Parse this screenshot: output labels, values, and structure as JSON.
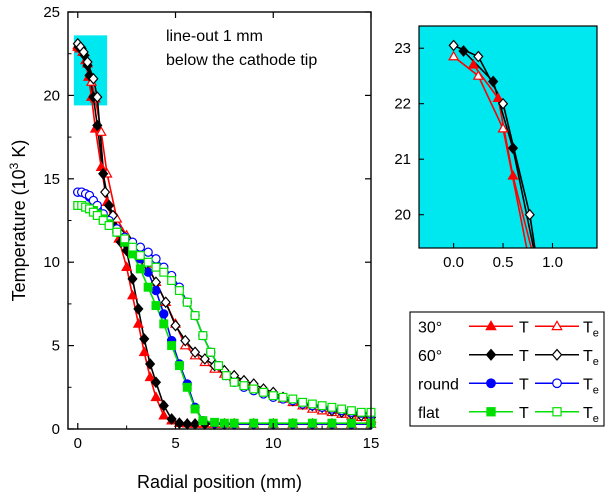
{
  "chart_data": [
    {
      "type": "line",
      "name": "main-plot",
      "xlabel": "Radial position (mm)",
      "ylabel_main": "Temperature (10",
      "ylabel_sup": "3",
      "ylabel_tail": " K)",
      "xlim": [
        -0.5,
        15
      ],
      "ylim": [
        0,
        25
      ],
      "xticks": [
        0,
        5,
        10,
        15
      ],
      "yticks": [
        0,
        5,
        10,
        15,
        20,
        25
      ],
      "annotation": [
        "line-out 1 mm",
        "below the cathode tip"
      ],
      "highlight": {
        "x": [
          -0.2,
          1.5
        ],
        "y": [
          19.4,
          23.6
        ],
        "color": "#00e8ef"
      },
      "series": [
        {
          "group": "30°",
          "var": "T",
          "color": "#ff0000",
          "marker": "triangle",
          "filled": true,
          "x": [
            0.0,
            0.1,
            0.25,
            0.4,
            0.55,
            0.7,
            0.9,
            1.2,
            1.5,
            1.8,
            2.1,
            2.5,
            2.8,
            3.1,
            3.4,
            3.7,
            4.0,
            4.4,
            4.8,
            5.2,
            5.6,
            6.0,
            6.5,
            7.0,
            7.5,
            8.0,
            9.0,
            10.0,
            11.0,
            12.0,
            13.0,
            14.0,
            15.0
          ],
          "y": [
            22.9,
            22.8,
            22.6,
            22.1,
            21.1,
            19.9,
            18.0,
            15.7,
            13.6,
            12.3,
            11.4,
            9.7,
            8.0,
            6.3,
            4.6,
            3.1,
            1.9,
            0.8,
            0.5,
            0.35,
            0.32,
            0.3,
            0.3,
            0.3,
            0.3,
            0.3,
            0.3,
            0.3,
            0.3,
            0.3,
            0.3,
            0.3,
            0.3
          ]
        },
        {
          "group": "30°",
          "var": "Te",
          "color": "#ff0000",
          "marker": "triangle",
          "filled": false,
          "x": [
            0.0,
            0.1,
            0.3,
            0.5,
            0.7,
            0.9,
            1.2,
            1.5,
            2.0,
            2.5,
            3.0,
            3.5,
            4.0,
            4.5,
            5.0,
            5.5,
            6.0,
            6.5,
            7.0,
            7.5,
            8.0,
            8.5,
            9.0,
            9.5,
            10.0,
            10.5,
            11.0,
            11.5,
            12.0,
            12.5,
            13.0,
            13.5,
            14.0,
            14.5,
            15.0
          ],
          "y": [
            23.0,
            22.9,
            22.6,
            21.9,
            20.8,
            19.8,
            17.8,
            15.3,
            12.6,
            11.6,
            10.8,
            9.9,
            8.8,
            7.6,
            6.3,
            5.0,
            4.4,
            4.0,
            3.6,
            3.3,
            3.1,
            2.8,
            2.5,
            2.3,
            2.1,
            1.8,
            1.6,
            1.4,
            1.2,
            1.1,
            1.0,
            0.9,
            0.8,
            0.7,
            0.6
          ]
        },
        {
          "group": "60°",
          "var": "T",
          "color": "#000000",
          "marker": "diamond",
          "filled": true,
          "x": [
            0.05,
            0.2,
            0.35,
            0.5,
            0.6,
            0.8,
            1.0,
            1.3,
            1.6,
            1.9,
            2.2,
            2.5,
            2.8,
            3.1,
            3.4,
            3.7,
            4.0,
            4.4,
            4.8,
            5.2,
            5.6,
            6.0,
            6.5,
            7.0,
            7.5,
            8.0,
            9.0,
            10.0,
            11.0,
            12.0,
            13.0,
            14.0,
            15.0
          ],
          "y": [
            22.9,
            22.8,
            22.4,
            21.8,
            21.2,
            19.9,
            18.2,
            15.3,
            13.4,
            12.1,
            11.2,
            10.7,
            9.0,
            7.2,
            5.4,
            3.9,
            2.8,
            1.4,
            0.6,
            0.35,
            0.3,
            0.3,
            0.3,
            0.3,
            0.3,
            0.3,
            0.3,
            0.3,
            0.3,
            0.3,
            0.3,
            0.3,
            0.3
          ]
        },
        {
          "group": "60°",
          "var": "Te",
          "color": "#000000",
          "marker": "diamond",
          "filled": false,
          "x": [
            0.0,
            0.15,
            0.3,
            0.5,
            0.8,
            1.0,
            1.4,
            1.8,
            2.2,
            2.6,
            3.0,
            3.5,
            4.0,
            4.5,
            5.0,
            5.5,
            6.0,
            6.5,
            7.0,
            7.5,
            8.0,
            8.5,
            9.0,
            9.5,
            10.0,
            10.5,
            11.0,
            11.5,
            12.0,
            12.5,
            13.0,
            13.5,
            14.0,
            14.5,
            15.0
          ],
          "y": [
            23.1,
            22.9,
            22.6,
            22.0,
            21.0,
            19.9,
            14.2,
            12.8,
            11.7,
            11.3,
            10.7,
            9.9,
            8.8,
            7.6,
            6.2,
            5.3,
            4.6,
            4.2,
            3.8,
            3.5,
            3.2,
            2.9,
            2.7,
            2.4,
            2.2,
            1.9,
            1.7,
            1.5,
            1.4,
            1.3,
            1.1,
            1.0,
            0.9,
            0.8,
            0.7
          ]
        },
        {
          "group": "round",
          "var": "T",
          "color": "#0000ff",
          "marker": "circle",
          "filled": true,
          "x": [
            0.0,
            0.2,
            0.4,
            0.6,
            0.8,
            1.0,
            1.3,
            1.6,
            2.0,
            2.4,
            2.8,
            3.2,
            3.6,
            4.0,
            4.4,
            4.8,
            5.2,
            5.6,
            6.0,
            6.4,
            7.0,
            7.5,
            8.0,
            9.0,
            10.0,
            11.0,
            12.0,
            13.0,
            14.0,
            15.0
          ],
          "y": [
            14.2,
            14.2,
            14.1,
            13.9,
            13.6,
            13.2,
            12.7,
            12.3,
            11.8,
            11.4,
            10.9,
            10.2,
            9.4,
            8.3,
            6.9,
            5.3,
            3.9,
            2.7,
            1.3,
            0.5,
            0.35,
            0.3,
            0.3,
            0.3,
            0.3,
            0.3,
            0.3,
            0.3,
            0.3,
            0.3
          ]
        },
        {
          "group": "round",
          "var": "Te",
          "color": "#0000ff",
          "marker": "circle",
          "filled": false,
          "x": [
            0.0,
            0.2,
            0.4,
            0.6,
            0.8,
            1.0,
            1.3,
            1.6,
            2.0,
            2.4,
            2.8,
            3.2,
            3.6,
            4.0,
            4.4,
            4.8,
            5.2,
            5.6,
            6.0,
            6.4,
            6.8,
            7.2,
            7.6,
            8.0,
            8.5,
            9.0,
            9.5,
            10.0,
            10.5,
            11.0,
            11.5,
            12.0,
            12.5,
            13.0,
            13.5,
            14.0,
            14.5,
            15.0
          ],
          "y": [
            14.2,
            14.2,
            14.1,
            14.0,
            13.7,
            13.4,
            12.9,
            12.5,
            12.0,
            11.5,
            11.2,
            10.9,
            10.6,
            10.2,
            9.7,
            9.2,
            8.5,
            7.6,
            6.8,
            5.6,
            4.6,
            3.8,
            3.2,
            2.8,
            2.5,
            2.3,
            2.1,
            1.9,
            1.8,
            1.7,
            1.5,
            1.4,
            1.3,
            1.2,
            1.1,
            1.0,
            0.95,
            0.9
          ]
        },
        {
          "group": "flat",
          "var": "T",
          "color": "#00e000",
          "marker": "square",
          "filled": true,
          "x": [
            0.0,
            0.2,
            0.4,
            0.6,
            0.8,
            1.0,
            1.3,
            1.6,
            2.0,
            2.4,
            2.8,
            3.2,
            3.6,
            4.0,
            4.4,
            4.8,
            5.2,
            5.6,
            6.0,
            6.4,
            7.0,
            7.5,
            8.0,
            9.0,
            10.0,
            11.0,
            12.0,
            13.0,
            14.0,
            15.0
          ],
          "y": [
            13.4,
            13.4,
            13.3,
            13.2,
            13.1,
            12.9,
            12.6,
            12.3,
            11.8,
            11.2,
            10.5,
            9.6,
            8.5,
            7.4,
            6.3,
            5.0,
            3.8,
            2.5,
            1.2,
            0.5,
            0.4,
            0.35,
            0.35,
            0.35,
            0.35,
            0.35,
            0.35,
            0.35,
            0.35,
            0.35
          ]
        },
        {
          "group": "flat",
          "var": "Te",
          "color": "#00e000",
          "marker": "square",
          "filled": false,
          "x": [
            0.0,
            0.2,
            0.4,
            0.6,
            0.8,
            1.0,
            1.3,
            1.6,
            2.0,
            2.4,
            2.8,
            3.2,
            3.6,
            4.0,
            4.4,
            4.8,
            5.2,
            5.6,
            6.0,
            6.4,
            6.8,
            7.2,
            7.6,
            8.0,
            8.5,
            9.0,
            9.5,
            10.0,
            10.5,
            11.0,
            11.5,
            12.0,
            12.5,
            13.0,
            13.5,
            14.0,
            14.5,
            15.0
          ],
          "y": [
            13.4,
            13.4,
            13.3,
            13.2,
            13.0,
            12.8,
            12.5,
            12.2,
            11.8,
            11.4,
            10.9,
            10.4,
            10.0,
            9.7,
            9.4,
            8.9,
            8.3,
            7.6,
            6.8,
            5.6,
            4.6,
            3.8,
            3.2,
            2.8,
            2.6,
            2.4,
            2.2,
            2.0,
            1.9,
            1.8,
            1.6,
            1.5,
            1.4,
            1.3,
            1.2,
            1.1,
            1.0,
            1.0
          ]
        }
      ]
    },
    {
      "type": "line",
      "name": "inset-plot",
      "background": "#00e8ef",
      "xlim": [
        -0.35,
        1.45
      ],
      "ylim": [
        19.4,
        23.4
      ],
      "xticks": [
        0.0,
        0.5,
        1.0
      ],
      "xtick_labels": [
        "0.0",
        "0.5",
        "1.0"
      ],
      "yticks": [
        20,
        21,
        22,
        23
      ],
      "series": [
        {
          "group": "30°",
          "var": "T",
          "color": "#ff0000",
          "marker": "triangle",
          "filled": true,
          "x": [
            0.2,
            0.45,
            0.6,
            0.8
          ],
          "y": [
            22.7,
            22.1,
            20.7,
            19.3
          ]
        },
        {
          "group": "30°",
          "var": "Te",
          "color": "#ff0000",
          "marker": "triangle",
          "filled": false,
          "x": [
            0.0,
            0.25,
            0.5,
            0.75
          ],
          "y": [
            22.85,
            22.5,
            21.55,
            19.3
          ]
        },
        {
          "group": "60°",
          "var": "T",
          "color": "#000000",
          "marker": "diamond",
          "filled": true,
          "x": [
            0.1,
            0.4,
            0.6,
            0.82
          ],
          "y": [
            22.95,
            22.4,
            21.2,
            19.3
          ]
        },
        {
          "group": "60°",
          "var": "Te",
          "color": "#000000",
          "marker": "diamond",
          "filled": false,
          "x": [
            0.0,
            0.25,
            0.5,
            0.77,
            0.83
          ],
          "y": [
            23.05,
            22.85,
            22.0,
            20.0,
            19.3
          ]
        }
      ]
    }
  ],
  "legend": [
    {
      "group": "30°",
      "label_T": "T",
      "label_Te_main": "T",
      "label_Te_sub": "e",
      "color": "#ff0000",
      "marker": "triangle"
    },
    {
      "group": "60°",
      "label_T": "T",
      "label_Te_main": "T",
      "label_Te_sub": "e",
      "color": "#000000",
      "marker": "diamond"
    },
    {
      "group": "round",
      "label_T": "T",
      "label_Te_main": "T",
      "label_Te_sub": "e",
      "color": "#0000ff",
      "marker": "circle"
    },
    {
      "group": "flat",
      "label_T": "T",
      "label_Te_main": "T",
      "label_Te_sub": "e",
      "color": "#00e000",
      "marker": "square"
    }
  ]
}
